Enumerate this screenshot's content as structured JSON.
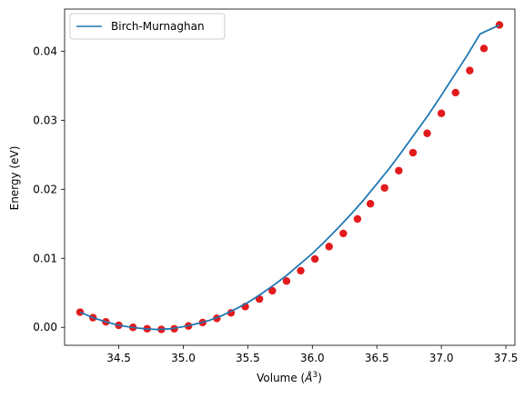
{
  "chart_data": {
    "type": "scatter",
    "xlabel_prefix": "Volume (",
    "xlabel_symbol": "Å",
    "xlabel_exponent": "3",
    "xlabel_suffix": ")",
    "ylabel": "Energy (eV)",
    "xlim": [
      34.08,
      37.57
    ],
    "ylim": [
      -0.0026,
      0.0461
    ],
    "xticks": [
      34.5,
      35.0,
      35.5,
      36.0,
      36.5,
      37.0,
      37.5
    ],
    "xtick_labels": [
      "34.5",
      "35.0",
      "35.5",
      "36.0",
      "36.5",
      "37.0",
      "37.5"
    ],
    "yticks": [
      0.0,
      0.01,
      0.02,
      0.03,
      0.04
    ],
    "ytick_labels": [
      "0.00",
      "0.01",
      "0.02",
      "0.03",
      "0.04"
    ],
    "grid": false,
    "legend": {
      "position": "top-left",
      "entries": [
        "Birch-Murnaghan"
      ]
    },
    "series": [
      {
        "name": "Birch-Murnaghan",
        "kind": "line",
        "color": "#1f77b4",
        "x": [
          34.2,
          34.3,
          34.4,
          34.5,
          34.6,
          34.7,
          34.8,
          34.9,
          35.0,
          35.1,
          35.2,
          35.3,
          35.4,
          35.5,
          35.6,
          35.7,
          35.8,
          35.9,
          36.0,
          36.1,
          36.2,
          36.3,
          36.4,
          36.5,
          36.6,
          36.7,
          36.8,
          36.9,
          37.0,
          37.1,
          37.2,
          37.3,
          37.45
        ],
        "y": [
          0.0022,
          0.0014,
          0.0008,
          0.0003,
          0.0,
          -0.0002,
          -0.0003,
          -0.0002,
          0.0001,
          0.0005,
          0.001,
          0.0017,
          0.0026,
          0.0036,
          0.0048,
          0.0061,
          0.0075,
          0.0091,
          0.0107,
          0.0125,
          0.0144,
          0.0164,
          0.0185,
          0.0208,
          0.0231,
          0.0256,
          0.0282,
          0.0308,
          0.0336,
          0.0365,
          0.0394,
          0.0425,
          0.0438
        ]
      },
      {
        "name": "",
        "kind": "scatter",
        "color": "#e31a1c",
        "x": [
          34.2,
          34.3,
          34.4,
          34.5,
          34.61,
          34.72,
          34.83,
          34.93,
          35.04,
          35.15,
          35.26,
          35.37,
          35.48,
          35.59,
          35.69,
          35.8,
          35.91,
          36.02,
          36.13,
          36.24,
          36.35,
          36.45,
          36.56,
          36.67,
          36.78,
          36.89,
          37.0,
          37.11,
          37.22,
          37.33,
          37.45
        ],
        "y": [
          0.0022,
          0.0014,
          0.0008,
          0.0003,
          0.0,
          -0.0002,
          -0.0003,
          -0.0002,
          0.0002,
          0.0007,
          0.0013,
          0.0021,
          0.003,
          0.0041,
          0.0053,
          0.0067,
          0.0082,
          0.0099,
          0.0117,
          0.0136,
          0.0157,
          0.0179,
          0.0202,
          0.0227,
          0.0253,
          0.0281,
          0.031,
          0.034,
          0.0372,
          0.0404,
          0.0438
        ]
      }
    ]
  }
}
